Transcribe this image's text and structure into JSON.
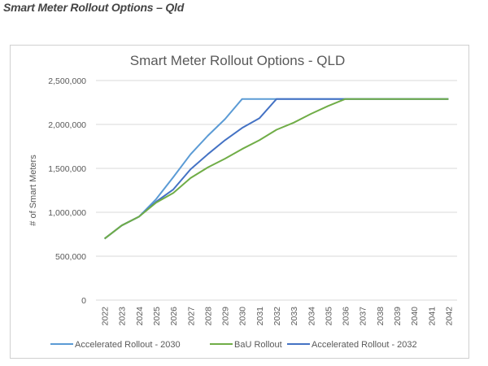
{
  "page": {
    "heading": "Smart Meter Rollout Options – Qld"
  },
  "chart_data": {
    "type": "line",
    "title": "Smart Meter Rollout Options - QLD",
    "xlabel": "",
    "ylabel": "# of Smart Meters",
    "ylim": [
      0,
      2500000
    ],
    "yticks": [
      0,
      500000,
      1000000,
      1500000,
      2000000,
      2500000
    ],
    "ytick_labels": [
      "0",
      "500,000",
      "1,000,000",
      "1,500,000",
      "2,000,000",
      "2,500,000"
    ],
    "grid": true,
    "legend": "bottom",
    "categories": [
      "2022",
      "2023",
      "2024",
      "2025",
      "2026",
      "2027",
      "2028",
      "2029",
      "2030",
      "2031",
      "2032",
      "2033",
      "2034",
      "2035",
      "2036",
      "2037",
      "2038",
      "2039",
      "2040",
      "2041",
      "2042"
    ],
    "series": [
      {
        "name": "Accelerated Rollout - 2030",
        "color": "#5b9bd5",
        "values": [
          700000,
          850000,
          950000,
          1150000,
          1400000,
          1660000,
          1870000,
          2060000,
          2290000,
          2290000,
          2290000,
          2290000,
          2290000,
          2290000,
          2290000,
          2290000,
          2290000,
          2290000,
          2290000,
          2290000,
          2290000
        ]
      },
      {
        "name": "BaU Rollout",
        "color": "#70ad47",
        "values": [
          700000,
          850000,
          950000,
          1110000,
          1220000,
          1390000,
          1510000,
          1610000,
          1720000,
          1820000,
          1940000,
          2020000,
          2120000,
          2210000,
          2290000,
          2290000,
          2290000,
          2290000,
          2290000,
          2290000,
          2290000
        ]
      },
      {
        "name": "Accelerated Rollout - 2032",
        "color": "#4472c4",
        "values": [
          700000,
          850000,
          950000,
          1120000,
          1260000,
          1490000,
          1660000,
          1820000,
          1960000,
          2070000,
          2290000,
          2290000,
          2290000,
          2290000,
          2290000,
          2290000,
          2290000,
          2290000,
          2290000,
          2290000,
          2290000
        ]
      }
    ]
  }
}
